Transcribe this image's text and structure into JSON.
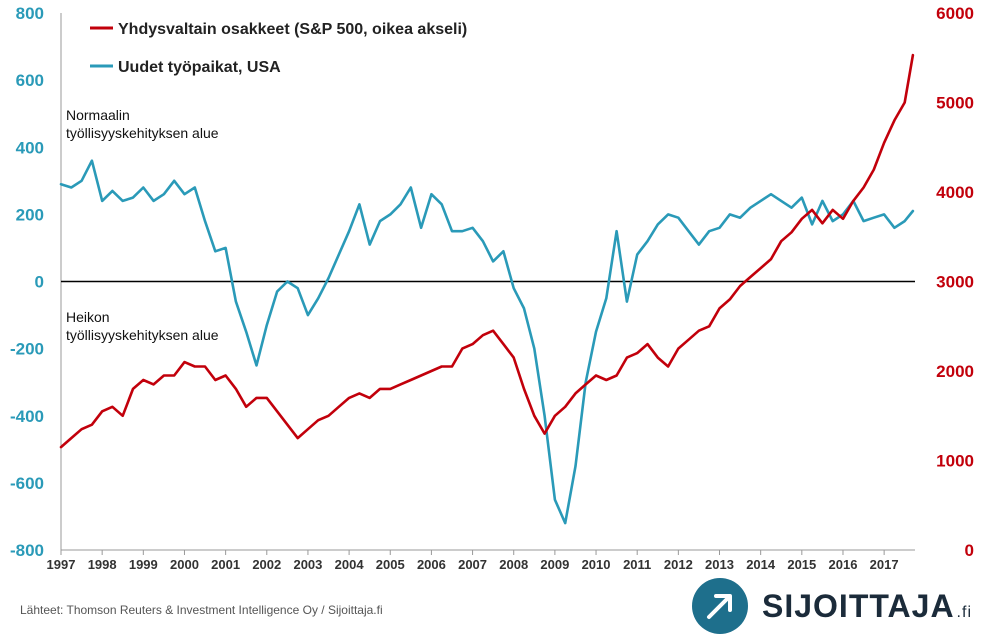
{
  "chart_data": {
    "type": "line",
    "legend": {
      "position": "top-left",
      "entries": [
        {
          "label": "Yhdysvaltain osakkeet (S&P 500, oikea akseli)",
          "color": "#c2000b"
        },
        {
          "label": "Uudet työpaikat, USA",
          "color": "#2a9ab8"
        }
      ]
    },
    "annotations": {
      "top": [
        "Normaalin",
        "työllisyyskehityksen alue"
      ],
      "bottom": [
        "Heikon",
        "työllisyyskehityksen alue"
      ]
    },
    "x_range": [
      1997,
      2017.75
    ],
    "x_ticks": [
      "1997",
      "1998",
      "1999",
      "2000",
      "2001",
      "2002",
      "2003",
      "2004",
      "2005",
      "2006",
      "2007",
      "2008",
      "2009",
      "2010",
      "2011",
      "2012",
      "2013",
      "2014",
      "2015",
      "2016",
      "2017"
    ],
    "y_left": {
      "range": [
        -800,
        800
      ],
      "ticks": [
        800,
        600,
        400,
        200,
        0,
        -200,
        -400,
        -600,
        -800
      ],
      "color": "#2a9ab8"
    },
    "y_right": {
      "range": [
        0,
        6000
      ],
      "ticks": [
        6000,
        5000,
        4000,
        3000,
        2000,
        1000,
        0
      ],
      "color": "#c2000b"
    },
    "zero_line": true,
    "grid": false,
    "series": [
      {
        "name": "Uudet työpaikat, USA",
        "axis": "left",
        "color": "#2a9ab8",
        "x": [
          1997.0,
          1997.25,
          1997.5,
          1997.75,
          1998.0,
          1998.25,
          1998.5,
          1998.75,
          1999.0,
          1999.25,
          1999.5,
          1999.75,
          2000.0,
          2000.25,
          2000.5,
          2000.75,
          2001.0,
          2001.25,
          2001.5,
          2001.75,
          2002.0,
          2002.25,
          2002.5,
          2002.75,
          2003.0,
          2003.25,
          2003.5,
          2003.75,
          2004.0,
          2004.25,
          2004.5,
          2004.75,
          2005.0,
          2005.25,
          2005.5,
          2005.75,
          2006.0,
          2006.25,
          2006.5,
          2006.75,
          2007.0,
          2007.25,
          2007.5,
          2007.75,
          2008.0,
          2008.25,
          2008.5,
          2008.75,
          2009.0,
          2009.25,
          2009.5,
          2009.75,
          2010.0,
          2010.25,
          2010.5,
          2010.75,
          2011.0,
          2011.25,
          2011.5,
          2011.75,
          2012.0,
          2012.25,
          2012.5,
          2012.75,
          2013.0,
          2013.25,
          2013.5,
          2013.75,
          2014.0,
          2014.25,
          2014.5,
          2014.75,
          2015.0,
          2015.25,
          2015.5,
          2015.75,
          2016.0,
          2016.25,
          2016.5,
          2016.75,
          2017.0,
          2017.25,
          2017.5,
          2017.7
        ],
        "values": [
          290,
          280,
          300,
          360,
          240,
          270,
          240,
          250,
          280,
          240,
          260,
          300,
          260,
          280,
          180,
          90,
          100,
          -60,
          -150,
          -250,
          -130,
          -30,
          0,
          -20,
          -100,
          -50,
          10,
          80,
          150,
          230,
          110,
          180,
          200,
          230,
          280,
          160,
          260,
          230,
          150,
          150,
          160,
          120,
          60,
          90,
          -20,
          -80,
          -200,
          -400,
          -650,
          -720,
          -550,
          -300,
          -150,
          -50,
          150,
          -60,
          80,
          120,
          170,
          200,
          190,
          150,
          110,
          150,
          160,
          200,
          190,
          220,
          240,
          260,
          240,
          220,
          250,
          170,
          240,
          180,
          200,
          240,
          180,
          190,
          200,
          160,
          180,
          210
        ]
      },
      {
        "name": "Yhdysvaltain osakkeet (S&P 500, oikea akseli)",
        "axis": "right",
        "color": "#c2000b",
        "x": [
          1997.0,
          1997.25,
          1997.5,
          1997.75,
          1998.0,
          1998.25,
          1998.5,
          1998.75,
          1999.0,
          1999.25,
          1999.5,
          1999.75,
          2000.0,
          2000.25,
          2000.5,
          2000.75,
          2001.0,
          2001.25,
          2001.5,
          2001.75,
          2002.0,
          2002.25,
          2002.5,
          2002.75,
          2003.0,
          2003.25,
          2003.5,
          2003.75,
          2004.0,
          2004.25,
          2004.5,
          2004.75,
          2005.0,
          2005.25,
          2005.5,
          2005.75,
          2006.0,
          2006.25,
          2006.5,
          2006.75,
          2007.0,
          2007.25,
          2007.5,
          2007.75,
          2008.0,
          2008.25,
          2008.5,
          2008.75,
          2009.0,
          2009.25,
          2009.5,
          2009.75,
          2010.0,
          2010.25,
          2010.5,
          2010.75,
          2011.0,
          2011.25,
          2011.5,
          2011.75,
          2012.0,
          2012.25,
          2012.5,
          2012.75,
          2013.0,
          2013.25,
          2013.5,
          2013.75,
          2014.0,
          2014.25,
          2014.5,
          2014.75,
          2015.0,
          2015.25,
          2015.5,
          2015.75,
          2016.0,
          2016.25,
          2016.5,
          2016.75,
          2017.0,
          2017.25,
          2017.5,
          2017.7
        ],
        "values": [
          1150,
          1250,
          1350,
          1400,
          1550,
          1600,
          1500,
          1800,
          1900,
          1850,
          1950,
          1950,
          2100,
          2050,
          2050,
          1900,
          1950,
          1800,
          1600,
          1700,
          1700,
          1550,
          1400,
          1250,
          1350,
          1450,
          1500,
          1600,
          1700,
          1750,
          1700,
          1800,
          1800,
          1850,
          1900,
          1950,
          2000,
          2050,
          2050,
          2250,
          2300,
          2400,
          2450,
          2300,
          2150,
          1800,
          1500,
          1300,
          1500,
          1600,
          1750,
          1850,
          1950,
          1900,
          1950,
          2150,
          2200,
          2300,
          2150,
          2050,
          2250,
          2350,
          2450,
          2500,
          2700,
          2800,
          2950,
          3050,
          3150,
          3250,
          3450,
          3550,
          3700,
          3800,
          3650,
          3800,
          3700,
          3900,
          4050,
          4250,
          4550,
          4800,
          5000,
          5530
        ]
      }
    ]
  },
  "source_text": "Lähteet: Thomson Reuters & Investment Intelligence Oy / Sijoittaja.fi",
  "logo": {
    "name": "SIJOITTAJA",
    "suffix": ".fi",
    "icon": "arrow-up-right-icon"
  }
}
